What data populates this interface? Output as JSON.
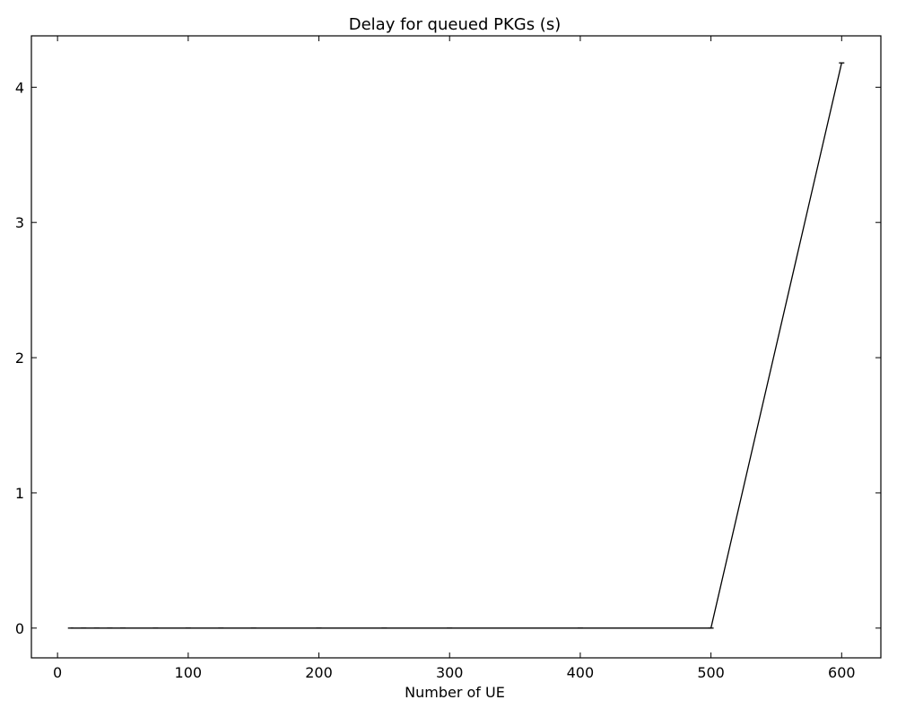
{
  "chart_data": {
    "type": "line",
    "title": "Delay for queued PKGs (s)",
    "xlabel": "Number of UE",
    "ylabel": "",
    "xlim": [
      -20,
      630
    ],
    "ylim": [
      -0.22,
      4.38
    ],
    "xticks": [
      0,
      100,
      200,
      300,
      400,
      500,
      600
    ],
    "yticks": [
      0,
      1,
      2,
      3,
      4
    ],
    "xtick_labels": [
      "0",
      "100",
      "200",
      "300",
      "400",
      "500",
      "600"
    ],
    "ytick_labels": [
      "0",
      "1",
      "2",
      "3",
      "4"
    ],
    "grid": false,
    "legend": "none",
    "line_color": "#000000",
    "series": [
      {
        "x": [
          10,
          20,
          30,
          40,
          50,
          75,
          100,
          125,
          150,
          200,
          250,
          300,
          400,
          500,
          600
        ],
        "values": [
          0,
          0,
          0,
          0,
          0,
          0,
          0,
          0,
          0,
          0,
          0,
          0,
          0,
          0,
          4.18
        ]
      }
    ]
  }
}
